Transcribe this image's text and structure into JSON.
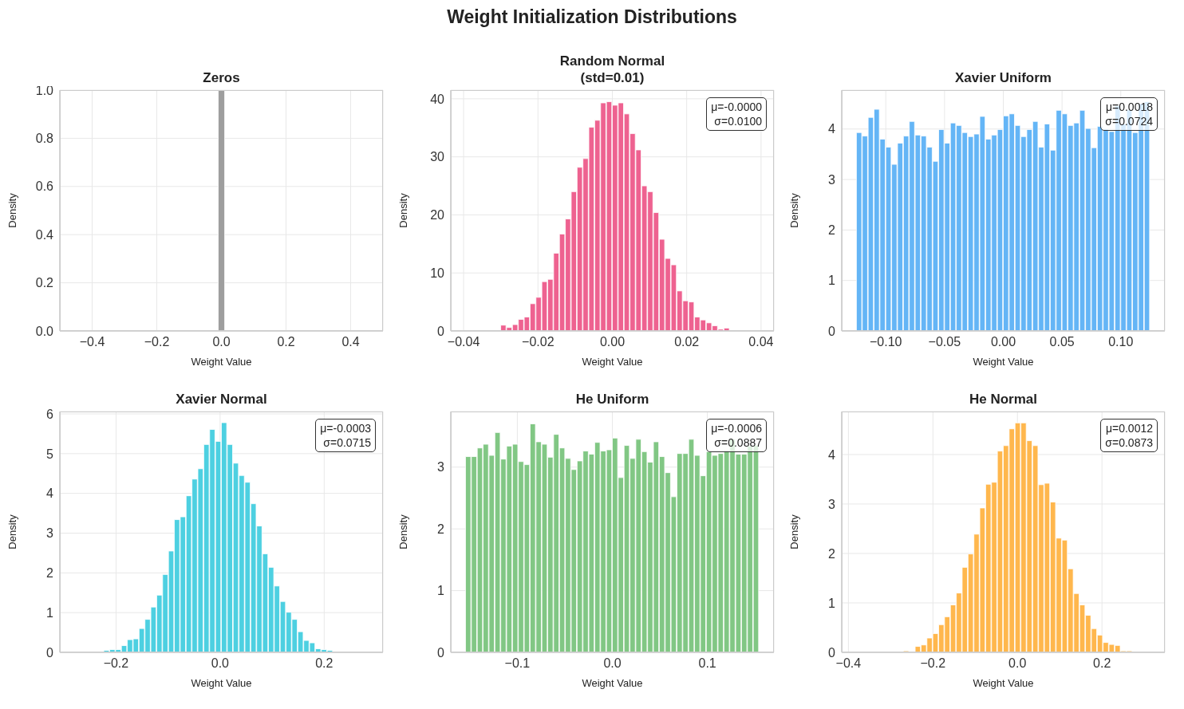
{
  "chart_data": [
    {
      "type": "other",
      "title": "Weight Initialization Distributions"
    },
    {
      "type": "histogram",
      "title": "Zeros",
      "xlabel": "Weight Value",
      "ylabel": "Density",
      "color": "#9e9e9e",
      "grid": true,
      "bins": [
        -0.01,
        0.01
      ],
      "values": [
        1
      ],
      "xlim": [
        -0.5,
        0.5
      ],
      "ylim": [
        0,
        1
      ],
      "xticks": [
        -0.4,
        -0.2,
        {
          "value": 0,
          "label": "0.0"
        },
        0.2,
        0.4
      ],
      "yticks": [
        {
          "value": 0,
          "label": "0.0"
        },
        0.2,
        0.4,
        0.6,
        0.8,
        {
          "value": 1,
          "label": "1.0"
        }
      ]
    },
    {
      "type": "histogram",
      "title": "Random Normal\n(std=0.01)",
      "xlabel": "Weight Value",
      "ylabel": "Density",
      "color": "#ee6290",
      "grid": true,
      "annotations": [
        "μ=-0.0000\nσ=0.0100"
      ],
      "bins": [
        -0.0395,
        -0.03792,
        -0.03634,
        -0.03476,
        -0.03318,
        -0.0316,
        -0.03002,
        -0.02844,
        -0.02686,
        -0.02528,
        -0.0237,
        -0.02212,
        -0.02054,
        -0.01896,
        -0.01738,
        -0.0158,
        -0.01422,
        -0.01264,
        -0.01106,
        -0.00948,
        -0.0079,
        -0.00632,
        -0.00474,
        -0.00316,
        -0.00158,
        0,
        0.00158,
        0.00316,
        0.00474,
        0.00632,
        0.0079,
        0.00948,
        0.01106,
        0.01264,
        0.01422,
        0.0158,
        0.01738,
        0.01896,
        0.02054,
        0.02212,
        0.0237,
        0.02528,
        0.02686,
        0.02844,
        0.03002,
        0.0316,
        0.03318,
        0.03476,
        0.03634,
        0.03792,
        0.0395
      ],
      "values": [
        0,
        0,
        0,
        0,
        0.1,
        0,
        1.0,
        0.6,
        1.1,
        2.0,
        2.4,
        4.7,
        5.8,
        8.5,
        8.9,
        13.4,
        16.7,
        19.3,
        24.0,
        28.2,
        29.7,
        35.1,
        36.3,
        39.3,
        39.5,
        38.9,
        39.3,
        37.4,
        34.0,
        31.2,
        25.0,
        24.0,
        20.4,
        15.8,
        12.5,
        11.4,
        6.9,
        5.2,
        5.0,
        2.4,
        1.9,
        1.4,
        0.9,
        0.3,
        0.5,
        0,
        0,
        0,
        0,
        0
      ],
      "xlim": [
        -0.04345,
        0.04345
      ],
      "ylim": [
        0,
        41.5
      ],
      "xticks": [
        -0.04,
        -0.02,
        {
          "value": 0,
          "label": "0.00"
        },
        0.02,
        0.04
      ],
      "yticks": [
        0,
        10,
        20,
        30,
        40
      ]
    },
    {
      "type": "histogram",
      "title": "Xavier Uniform",
      "xlabel": "Weight Value",
      "ylabel": "Density",
      "color": "#64b5f6",
      "grid": true,
      "annotations": [
        "μ=0.0018\nσ=0.0724"
      ],
      "bins": [
        -0.125,
        -0.12,
        -0.115,
        -0.11,
        -0.105,
        -0.1,
        -0.095,
        -0.09,
        -0.085,
        -0.08,
        -0.075,
        -0.07,
        -0.065,
        -0.06,
        -0.055,
        -0.05,
        -0.045,
        -0.04,
        -0.035,
        -0.03,
        -0.025,
        -0.02,
        -0.015,
        -0.01,
        -0.005,
        0,
        0.005,
        0.01,
        0.015,
        0.02,
        0.025,
        0.03,
        0.035,
        0.04,
        0.045,
        0.05,
        0.055,
        0.06,
        0.065,
        0.07,
        0.075,
        0.08,
        0.085,
        0.09,
        0.095,
        0.1,
        0.105,
        0.11,
        0.115,
        0.12,
        0.125
      ],
      "values": [
        3.93,
        3.86,
        4.23,
        4.39,
        3.8,
        3.64,
        3.3,
        3.72,
        3.86,
        4.15,
        3.88,
        3.86,
        3.64,
        3.36,
        3.99,
        3.72,
        4.12,
        4.07,
        3.93,
        3.85,
        3.9,
        4.25,
        3.8,
        3.88,
        3.99,
        4.26,
        4.3,
        4.07,
        3.85,
        3.99,
        4.15,
        3.64,
        4.1,
        3.58,
        4.37,
        4.3,
        4.07,
        4.12,
        4.37,
        4.01,
        3.63,
        4.05,
        4.0,
        3.95,
        4.46,
        4.1,
        4.38,
        3.93,
        4.5,
        4.54
      ],
      "xlim": [
        -0.1375,
        0.1375
      ],
      "ylim": [
        0,
        4.77
      ],
      "xticks": [
        {
          "value": -0.1,
          "label": "−0.10"
        },
        {
          "value": -0.05,
          "label": "−0.05"
        },
        {
          "value": 0,
          "label": "0.00"
        },
        {
          "value": 0.05,
          "label": "0.05"
        },
        {
          "value": 0.1,
          "label": "0.10"
        }
      ],
      "yticks": [
        0,
        1,
        2,
        3,
        4
      ]
    },
    {
      "type": "histogram",
      "title": "Xavier Normal",
      "xlabel": "Weight Value",
      "ylabel": "Density",
      "color": "#4dd0e1",
      "grid": true,
      "annotations": [
        "μ=-0.0003\nσ=0.0715"
      ],
      "bins": [
        -0.28,
        -0.2687,
        -0.2574,
        -0.2461,
        -0.2348,
        -0.2235,
        -0.2122,
        -0.2009,
        -0.1896,
        -0.1783,
        -0.167,
        -0.1557,
        -0.1444,
        -0.1331,
        -0.1218,
        -0.1105,
        -0.0992,
        -0.0879,
        -0.0766,
        -0.0653,
        -0.054,
        -0.0427,
        -0.0314,
        -0.0201,
        -0.0088,
        0.0025,
        0.0138,
        0.0251,
        0.0364,
        0.0477,
        0.059,
        0.0703,
        0.0816,
        0.0929,
        0.1042,
        0.1155,
        0.1268,
        0.1381,
        0.1494,
        0.1607,
        0.172,
        0.1833,
        0.1946,
        0.2059,
        0.2172,
        0.2285,
        0.2398,
        0.2511,
        0.2624,
        0.2737,
        0.285
      ],
      "values": [
        0,
        0,
        0,
        0,
        0,
        0.05,
        0.07,
        0.07,
        0.17,
        0.32,
        0.34,
        0.6,
        0.83,
        1.14,
        1.44,
        1.96,
        2.55,
        3.34,
        3.41,
        3.94,
        4.36,
        4.62,
        5.23,
        5.61,
        5.31,
        5.78,
        5.23,
        4.76,
        4.45,
        4.28,
        3.74,
        3.18,
        2.48,
        2.14,
        1.67,
        1.28,
        1.01,
        0.83,
        0.52,
        0.3,
        0.24,
        0.09,
        0.07,
        0.05,
        0,
        0,
        0,
        0,
        0,
        0
      ],
      "xlim": [
        -0.308,
        0.313
      ],
      "ylim": [
        0,
        6.06
      ],
      "xticks": [
        -0.2,
        {
          "value": 0,
          "label": "0.0"
        },
        0.2
      ],
      "yticks": [
        0,
        1,
        2,
        3,
        4,
        5,
        6
      ]
    },
    {
      "type": "histogram",
      "title": "He Uniform",
      "xlabel": "Weight Value",
      "ylabel": "Density",
      "color": "#81c784",
      "grid": true,
      "annotations": [
        "μ=-0.0006\nσ=0.0887"
      ],
      "bins": [
        -0.1545,
        -0.14832,
        -0.14214,
        -0.13596,
        -0.12978,
        -0.1236,
        -0.11742,
        -0.11124,
        -0.10506,
        -0.09888,
        -0.0927,
        -0.08652,
        -0.08034,
        -0.07416,
        -0.06798,
        -0.0618,
        -0.05562,
        -0.04944,
        -0.04326,
        -0.03708,
        -0.0309,
        -0.02472,
        -0.01854,
        -0.01236,
        -0.00618,
        0,
        0.00618,
        0.01236,
        0.01854,
        0.02472,
        0.0309,
        0.03708,
        0.04326,
        0.04944,
        0.05562,
        0.0618,
        0.06798,
        0.07416,
        0.08034,
        0.08652,
        0.0927,
        0.09888,
        0.10506,
        0.11124,
        0.11742,
        0.1236,
        0.12978,
        0.13596,
        0.14214,
        0.14832,
        0.1545
      ],
      "values": [
        3.17,
        3.17,
        3.31,
        3.37,
        3.19,
        3.56,
        3.13,
        3.34,
        3.37,
        3.09,
        3.04,
        3.7,
        3.41,
        3.37,
        3.16,
        3.53,
        3.31,
        3.14,
        2.96,
        3.1,
        3.26,
        3.21,
        3.4,
        3.26,
        3.28,
        3.47,
        2.83,
        3.35,
        3.14,
        3.45,
        3.25,
        3.08,
        3.41,
        3.17,
        2.91,
        2.52,
        3.22,
        3.22,
        3.45,
        3.19,
        2.86,
        3.25,
        3.19,
        3.22,
        3.27,
        3.45,
        3.21,
        3.21,
        3.34,
        3.35
      ],
      "xlim": [
        -0.17,
        0.17
      ],
      "ylim": [
        0,
        3.9
      ],
      "xticks": [
        -0.1,
        {
          "value": 0,
          "label": "0.0"
        },
        0.1
      ],
      "yticks": [
        0,
        1,
        2,
        3
      ]
    },
    {
      "type": "histogram",
      "title": "He Normal",
      "xlabel": "Weight Value",
      "ylabel": "Density",
      "color": "#ffb74d",
      "grid": true,
      "annotations": [
        "μ=0.0012\nσ=0.0873"
      ],
      "bins": [
        -0.381,
        -0.3671,
        -0.3532,
        -0.3393,
        -0.3254,
        -0.3115,
        -0.2976,
        -0.2837,
        -0.2698,
        -0.2559,
        -0.242,
        -0.2281,
        -0.2142,
        -0.2003,
        -0.1864,
        -0.1725,
        -0.1586,
        -0.1447,
        -0.1308,
        -0.1169,
        -0.103,
        -0.0891,
        -0.0752,
        -0.0613,
        -0.0474,
        -0.0335,
        -0.0196,
        -0.0057,
        0.0082,
        0.0221,
        0.036,
        0.0499,
        0.0638,
        0.0777,
        0.0916,
        0.1055,
        0.1194,
        0.1333,
        0.1472,
        0.1611,
        0.175,
        0.1889,
        0.2028,
        0.2167,
        0.2306,
        0.2445,
        0.2584,
        0.2723,
        0.2862,
        0.3001,
        0.314
      ],
      "values": [
        0,
        0,
        0,
        0,
        0,
        0,
        0,
        0,
        0.03,
        0,
        0.12,
        0.15,
        0.29,
        0.38,
        0.56,
        0.72,
        0.96,
        1.2,
        1.72,
        1.99,
        2.39,
        2.92,
        3.4,
        3.44,
        4.07,
        4.18,
        4.52,
        4.64,
        4.64,
        4.28,
        4.18,
        3.39,
        3.42,
        3.04,
        2.31,
        2.27,
        1.69,
        1.19,
        0.96,
        0.75,
        0.48,
        0.35,
        0.2,
        0.16,
        0.14,
        0.03,
        0.03,
        0,
        0,
        0
      ],
      "xlim": [
        -0.4158,
        0.3488
      ],
      "ylim": [
        0,
        4.87
      ],
      "xticks": [
        -0.4,
        -0.2,
        {
          "value": 0,
          "label": "0.0"
        },
        0.2
      ],
      "yticks": [
        0,
        1,
        2,
        3,
        4
      ]
    }
  ]
}
